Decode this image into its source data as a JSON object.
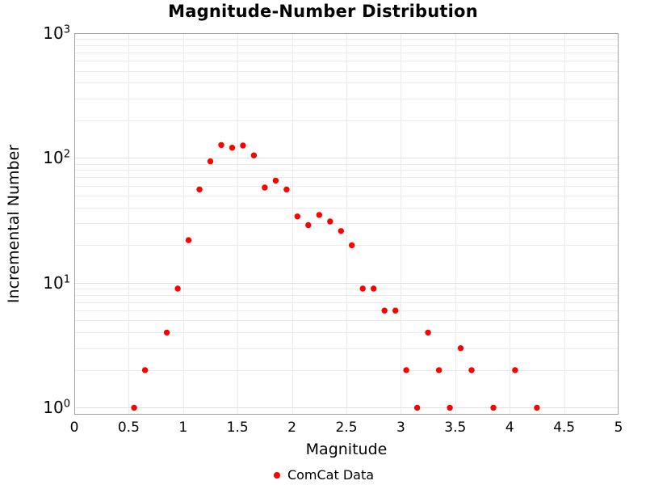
{
  "chart_data": {
    "type": "scatter",
    "title": "Magnitude-Number Distribution",
    "xlabel": "Magnitude",
    "ylabel": "Incremental Number",
    "xlim": [
      0,
      5
    ],
    "ylim": [
      0.88,
      1000
    ],
    "y_scale": "log",
    "grid": true,
    "x_ticks": [
      0,
      0.5,
      1,
      1.5,
      2,
      2.5,
      3,
      3.5,
      4,
      4.5,
      5
    ],
    "x_tick_labels": [
      "0",
      "0.5",
      "1",
      "1.5",
      "2",
      "2.5",
      "3",
      "3.5",
      "4",
      "4.5",
      "5"
    ],
    "y_tick_exponents": [
      0,
      1,
      2,
      3
    ],
    "y_tick_base": "10",
    "legend": {
      "label": "ComCat Data",
      "position": "bottom-center"
    },
    "series": [
      {
        "name": "ComCat Data",
        "color": "#fe0000",
        "marker": "circle",
        "points": [
          [
            0.55,
            1
          ],
          [
            0.65,
            2
          ],
          [
            0.85,
            4
          ],
          [
            0.95,
            9
          ],
          [
            1.05,
            22
          ],
          [
            1.15,
            56
          ],
          [
            1.25,
            94
          ],
          [
            1.35,
            127
          ],
          [
            1.45,
            121
          ],
          [
            1.55,
            126
          ],
          [
            1.65,
            105
          ],
          [
            1.75,
            58
          ],
          [
            1.85,
            66
          ],
          [
            1.95,
            56
          ],
          [
            2.05,
            34
          ],
          [
            2.15,
            29
          ],
          [
            2.25,
            35
          ],
          [
            2.35,
            31
          ],
          [
            2.45,
            26
          ],
          [
            2.55,
            20
          ],
          [
            2.65,
            9
          ],
          [
            2.75,
            9
          ],
          [
            2.85,
            6
          ],
          [
            2.95,
            6
          ],
          [
            3.05,
            2
          ],
          [
            3.15,
            1
          ],
          [
            3.25,
            4
          ],
          [
            3.35,
            2
          ],
          [
            3.45,
            1
          ],
          [
            3.55,
            3
          ],
          [
            3.65,
            2
          ],
          [
            3.85,
            1
          ],
          [
            4.05,
            2
          ],
          [
            4.25,
            1
          ]
        ]
      }
    ],
    "colors": {
      "point": "#fe0000",
      "grid_minor": "#ebebeb",
      "grid_major": "#e0e0e0",
      "border": "#a3a3a3",
      "text": "#000000"
    }
  }
}
